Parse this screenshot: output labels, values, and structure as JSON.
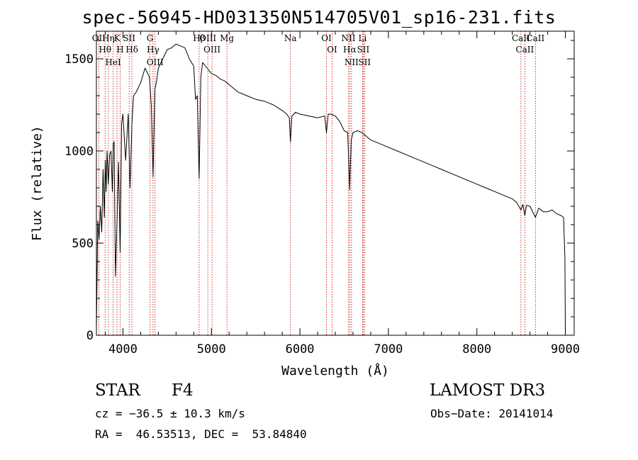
{
  "chart_data": {
    "type": "line",
    "title": "spec-56945-HD031350N514705V01_sp16-231.fits",
    "xlabel": "Wavelength (Å)",
    "ylabel": "Flux (relative)",
    "xlim": [
      3700,
      9100
    ],
    "ylim": [
      0,
      1650
    ],
    "xticks": [
      4000,
      5000,
      6000,
      7000,
      8000,
      9000
    ],
    "yticks": [
      0,
      500,
      1000,
      1500
    ],
    "series": [
      {
        "name": "flux",
        "x": [
          3700,
          3715,
          3730,
          3745,
          3760,
          3775,
          3790,
          3800,
          3810,
          3820,
          3835,
          3850,
          3865,
          3880,
          3890,
          3900,
          3915,
          3933,
          3950,
          3968,
          3985,
          4000,
          4030,
          4060,
          4080,
          4101,
          4120,
          4150,
          4200,
          4250,
          4300,
          4320,
          4340,
          4360,
          4380,
          4400,
          4450,
          4500,
          4550,
          4600,
          4650,
          4700,
          4750,
          4800,
          4820,
          4840,
          4861,
          4880,
          4900,
          4950,
          5000,
          5050,
          5100,
          5150,
          5200,
          5250,
          5300,
          5400,
          5500,
          5600,
          5700,
          5800,
          5850,
          5880,
          5893,
          5910,
          5950,
          6000,
          6100,
          6200,
          6280,
          6300,
          6320,
          6350,
          6400,
          6450,
          6500,
          6540,
          6563,
          6580,
          6600,
          6650,
          6700,
          6750,
          6800,
          6900,
          7000,
          7100,
          7200,
          7300,
          7400,
          7500,
          7600,
          7700,
          7800,
          7900,
          8000,
          8100,
          8200,
          8300,
          8400,
          8450,
          8498,
          8520,
          8542,
          8560,
          8600,
          8662,
          8700,
          8750,
          8800,
          8850,
          8900,
          8950,
          8980,
          8995,
          9000
        ],
        "values": [
          40,
          620,
          520,
          700,
          560,
          900,
          640,
          950,
          780,
          1000,
          820,
          980,
          1000,
          780,
          1040,
          1050,
          320,
          620,
          940,
          450,
          1150,
          1200,
          950,
          1200,
          800,
          1150,
          1300,
          1320,
          1370,
          1450,
          1400,
          1250,
          860,
          1330,
          1380,
          1450,
          1500,
          1550,
          1560,
          1580,
          1570,
          1560,
          1500,
          1460,
          1280,
          1300,
          850,
          1400,
          1480,
          1450,
          1420,
          1410,
          1390,
          1380,
          1360,
          1340,
          1320,
          1300,
          1280,
          1270,
          1250,
          1220,
          1200,
          1180,
          1050,
          1190,
          1210,
          1200,
          1190,
          1180,
          1190,
          1100,
          1200,
          1200,
          1190,
          1160,
          1110,
          1100,
          790,
          1060,
          1100,
          1110,
          1100,
          1080,
          1060,
          1040,
          1020,
          1000,
          980,
          960,
          940,
          920,
          900,
          880,
          860,
          840,
          820,
          800,
          780,
          760,
          740,
          720,
          680,
          710,
          650,
          705,
          700,
          640,
          690,
          670,
          670,
          680,
          660,
          650,
          640,
          420,
          20
        ]
      }
    ],
    "line_annotations": [
      {
        "label": "Hθ",
        "x": 3798
      },
      {
        "label": "OII",
        "x": 3727
      },
      {
        "label": "Hη",
        "x": 3835
      },
      {
        "label": "K",
        "x": 3933
      },
      {
        "label": "HeI",
        "x": 3889
      },
      {
        "label": "H",
        "x": 3968
      },
      {
        "label": "Hδ",
        "x": 4101
      },
      {
        "label": "SII",
        "x": 4070
      },
      {
        "label": "G",
        "x": 4305
      },
      {
        "label": "OIII",
        "x": 4363
      },
      {
        "label": "Hγ",
        "x": 4340
      },
      {
        "label": "Hβ",
        "x": 4861
      },
      {
        "label": "OIII",
        "x": 4959
      },
      {
        "label": "OIII",
        "x": 5007
      },
      {
        "label": "Mg",
        "x": 5175
      },
      {
        "label": "Na",
        "x": 5893
      },
      {
        "label": "OI",
        "x": 6300
      },
      {
        "label": "OI",
        "x": 6364
      },
      {
        "label": "Hα",
        "x": 6563
      },
      {
        "label": "NII",
        "x": 6548
      },
      {
        "label": "NII",
        "x": 6583
      },
      {
        "label": "Li",
        "x": 6708
      },
      {
        "label": "SII",
        "x": 6716
      },
      {
        "label": "SII",
        "x": 6731
      },
      {
        "label": "CaII",
        "x": 8498
      },
      {
        "label": "CaII",
        "x": 8542
      },
      {
        "label": "CaII",
        "x": 8662
      }
    ],
    "colors": {
      "line": "#000000",
      "marker": "#c00000",
      "axis": "#000000"
    }
  },
  "info": {
    "class": "STAR",
    "subclass": "F4",
    "survey": "LAMOST DR3",
    "cz": "cz = −36.5 ± 10.3 km/s",
    "obsdate": "Obs−Date: 20141014",
    "radec": "RA =  46.53513, DEC =  53.84840"
  }
}
